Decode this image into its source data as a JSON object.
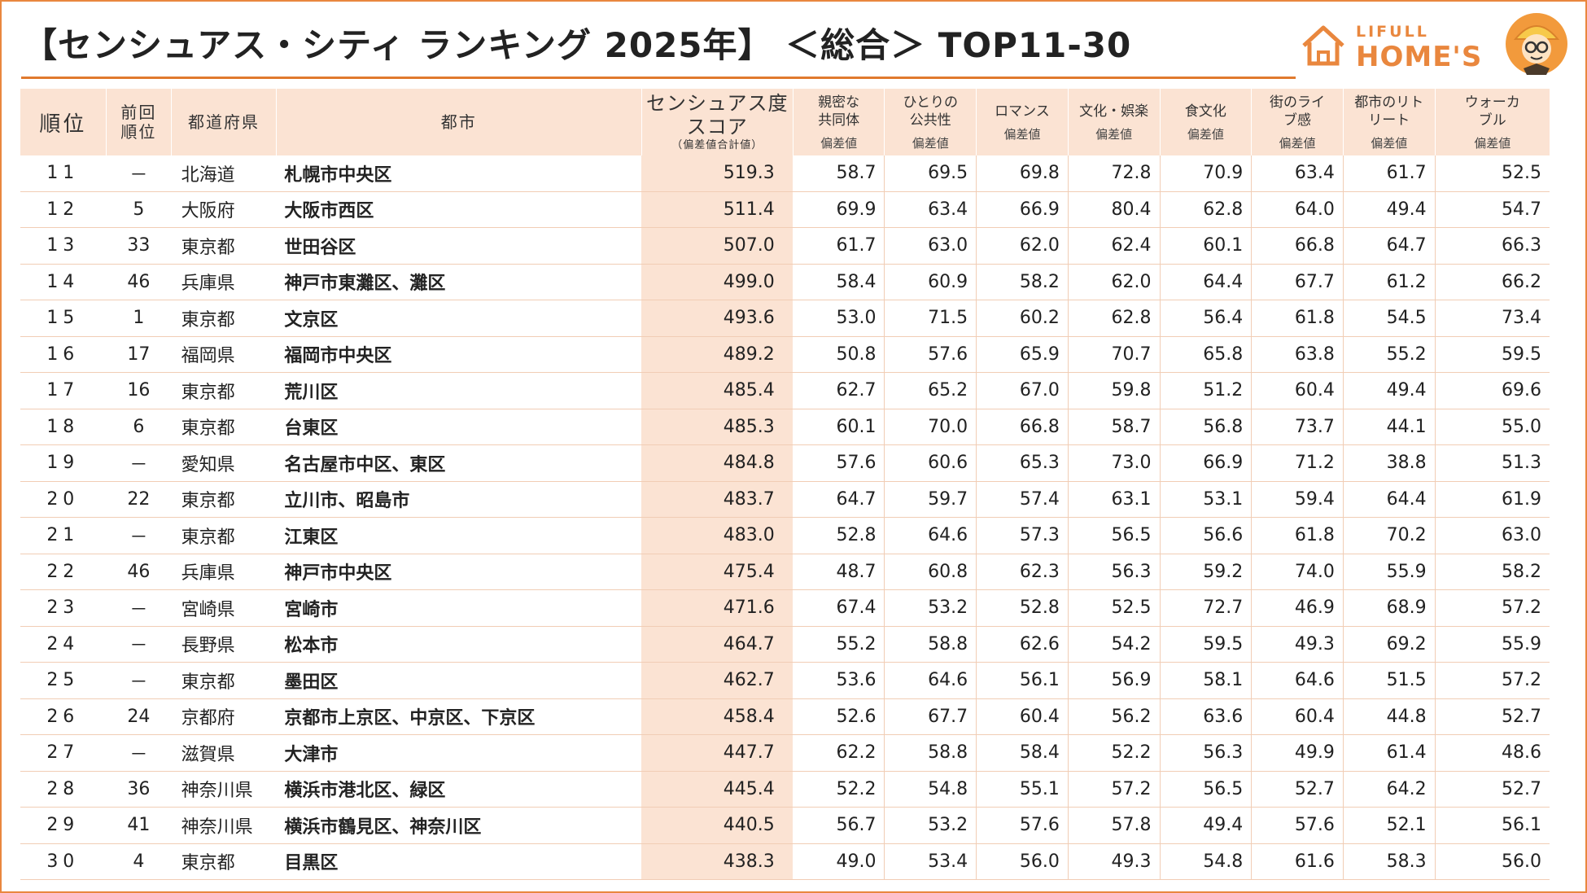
{
  "header": {
    "title": "【センシュアス・シティ ランキング 2025年】 ＜総合＞ TOP11-30"
  },
  "logo": {
    "small": "LIFULL",
    "big": "HOME'S",
    "colors": {
      "brand": "#e9873e"
    }
  },
  "columns": {
    "rank": "順位",
    "prev": "前回順位",
    "pref": "都道府県",
    "city": "都市",
    "score": "センシュアス度スコア",
    "score_note": "（偏差値合計値）",
    "sub": "偏差値",
    "c1": "親密な共同体",
    "c2": "ひとりの公共性",
    "c3": "ロマンス",
    "c4": "文化・娯楽",
    "c5": "食文化",
    "c6": "街のライブ感",
    "c7": "都市のリトリート",
    "c8": "ウォーカブル"
  },
  "rows": [
    {
      "rank": "11",
      "prev": "－",
      "pref": "北海道",
      "city": "札幌市中央区",
      "score": "519.3",
      "v": [
        "58.7",
        "69.5",
        "69.8",
        "72.8",
        "70.9",
        "63.4",
        "61.7",
        "52.5"
      ]
    },
    {
      "rank": "12",
      "prev": "5",
      "pref": "大阪府",
      "city": "大阪市西区",
      "score": "511.4",
      "v": [
        "69.9",
        "63.4",
        "66.9",
        "80.4",
        "62.8",
        "64.0",
        "49.4",
        "54.7"
      ]
    },
    {
      "rank": "13",
      "prev": "33",
      "pref": "東京都",
      "city": "世田谷区",
      "score": "507.0",
      "v": [
        "61.7",
        "63.0",
        "62.0",
        "62.4",
        "60.1",
        "66.8",
        "64.7",
        "66.3"
      ]
    },
    {
      "rank": "14",
      "prev": "46",
      "pref": "兵庫県",
      "city": "神戸市東灘区、灘区",
      "score": "499.0",
      "v": [
        "58.4",
        "60.9",
        "58.2",
        "62.0",
        "64.4",
        "67.7",
        "61.2",
        "66.2"
      ]
    },
    {
      "rank": "15",
      "prev": "1",
      "pref": "東京都",
      "city": "文京区",
      "score": "493.6",
      "v": [
        "53.0",
        "71.5",
        "60.2",
        "62.8",
        "56.4",
        "61.8",
        "54.5",
        "73.4"
      ]
    },
    {
      "rank": "16",
      "prev": "17",
      "pref": "福岡県",
      "city": "福岡市中央区",
      "score": "489.2",
      "v": [
        "50.8",
        "57.6",
        "65.9",
        "70.7",
        "65.8",
        "63.8",
        "55.2",
        "59.5"
      ]
    },
    {
      "rank": "17",
      "prev": "16",
      "pref": "東京都",
      "city": "荒川区",
      "score": "485.4",
      "v": [
        "62.7",
        "65.2",
        "67.0",
        "59.8",
        "51.2",
        "60.4",
        "49.4",
        "69.6"
      ]
    },
    {
      "rank": "18",
      "prev": "6",
      "pref": "東京都",
      "city": "台東区",
      "score": "485.3",
      "v": [
        "60.1",
        "70.0",
        "66.8",
        "58.7",
        "56.8",
        "73.7",
        "44.1",
        "55.0"
      ]
    },
    {
      "rank": "19",
      "prev": "－",
      "pref": "愛知県",
      "city": "名古屋市中区、東区",
      "score": "484.8",
      "v": [
        "57.6",
        "60.6",
        "65.3",
        "73.0",
        "66.9",
        "71.2",
        "38.8",
        "51.3"
      ]
    },
    {
      "rank": "20",
      "prev": "22",
      "pref": "東京都",
      "city": "立川市、昭島市",
      "score": "483.7",
      "v": [
        "64.7",
        "59.7",
        "57.4",
        "63.1",
        "53.1",
        "59.4",
        "64.4",
        "61.9"
      ]
    },
    {
      "rank": "21",
      "prev": "－",
      "pref": "東京都",
      "city": "江東区",
      "score": "483.0",
      "v": [
        "52.8",
        "64.6",
        "57.3",
        "56.5",
        "56.6",
        "61.8",
        "70.2",
        "63.0"
      ]
    },
    {
      "rank": "22",
      "prev": "46",
      "pref": "兵庫県",
      "city": "神戸市中央区",
      "score": "475.4",
      "v": [
        "48.7",
        "60.8",
        "62.3",
        "56.3",
        "59.2",
        "74.0",
        "55.9",
        "58.2"
      ]
    },
    {
      "rank": "23",
      "prev": "－",
      "pref": "宮崎県",
      "city": "宮崎市",
      "score": "471.6",
      "v": [
        "67.4",
        "53.2",
        "52.8",
        "52.5",
        "72.7",
        "46.9",
        "68.9",
        "57.2"
      ]
    },
    {
      "rank": "24",
      "prev": "－",
      "pref": "長野県",
      "city": "松本市",
      "score": "464.7",
      "v": [
        "55.2",
        "58.8",
        "62.6",
        "54.2",
        "59.5",
        "49.3",
        "69.2",
        "55.9"
      ]
    },
    {
      "rank": "25",
      "prev": "－",
      "pref": "東京都",
      "city": "墨田区",
      "score": "462.7",
      "v": [
        "53.6",
        "64.6",
        "56.1",
        "56.9",
        "58.1",
        "64.6",
        "51.5",
        "57.2"
      ]
    },
    {
      "rank": "26",
      "prev": "24",
      "pref": "京都府",
      "city": "京都市上京区、中京区、下京区",
      "score": "458.4",
      "v": [
        "52.6",
        "67.7",
        "60.4",
        "56.2",
        "63.6",
        "60.4",
        "44.8",
        "52.7"
      ]
    },
    {
      "rank": "27",
      "prev": "－",
      "pref": "滋賀県",
      "city": "大津市",
      "score": "447.7",
      "v": [
        "62.2",
        "58.8",
        "58.4",
        "52.2",
        "56.3",
        "49.9",
        "61.4",
        "48.6"
      ]
    },
    {
      "rank": "28",
      "prev": "36",
      "pref": "神奈川県",
      "city": "横浜市港北区、緑区",
      "score": "445.4",
      "v": [
        "52.2",
        "54.8",
        "55.1",
        "57.2",
        "56.5",
        "52.7",
        "64.2",
        "52.7"
      ]
    },
    {
      "rank": "29",
      "prev": "41",
      "pref": "神奈川県",
      "city": "横浜市鶴見区、神奈川区",
      "score": "440.5",
      "v": [
        "56.7",
        "53.2",
        "57.6",
        "57.8",
        "49.4",
        "57.6",
        "52.1",
        "56.1"
      ]
    },
    {
      "rank": "30",
      "prev": "4",
      "pref": "東京都",
      "city": "目黒区",
      "score": "438.3",
      "v": [
        "49.0",
        "53.4",
        "56.0",
        "49.3",
        "54.8",
        "61.6",
        "58.3",
        "56.0"
      ]
    }
  ]
}
